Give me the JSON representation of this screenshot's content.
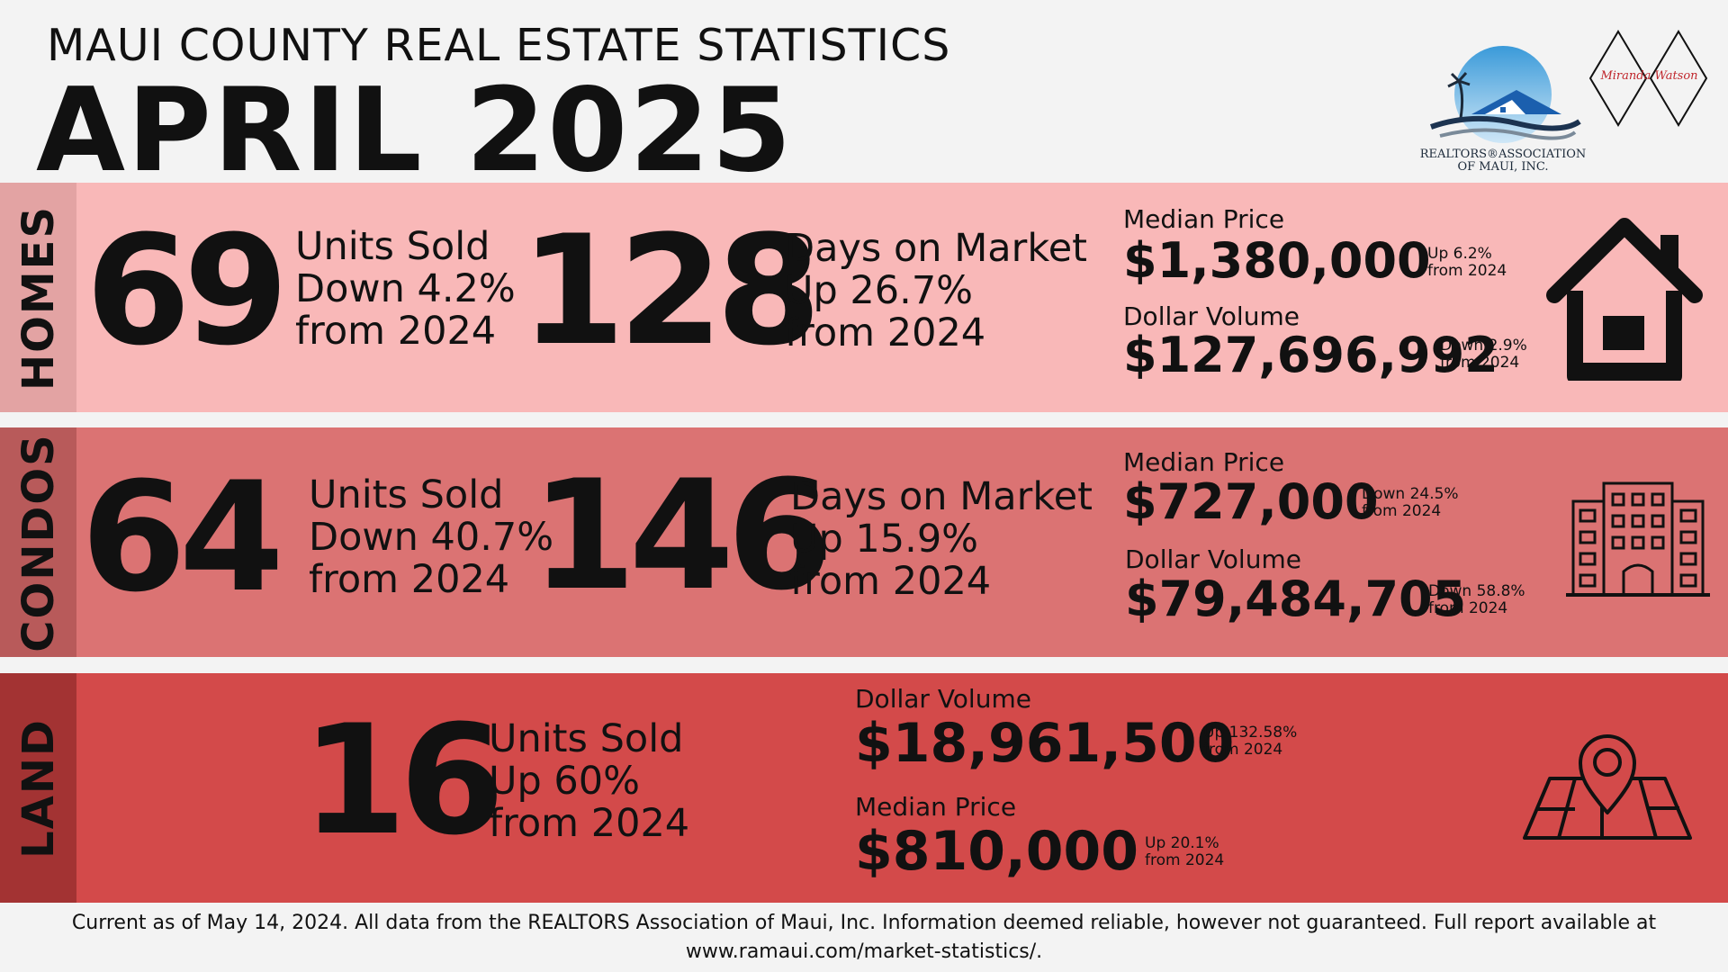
{
  "header": {
    "subtitle": "MAUI COUNTY REAL ESTATE STATISTICS",
    "title": "APRIL 2025",
    "logo_text_line1": "REALTORS®ASSOCIATION",
    "logo_text_line2": "OF MAUI, INC.",
    "signature": "Miranda Watson"
  },
  "homes": {
    "section_label": "HOMES",
    "units_number": "69",
    "units_l1": "Units Sold",
    "units_l2": "Down 4.2%",
    "units_l3": "from 2024",
    "dom_number": "128",
    "dom_l1": "Days on Market",
    "dom_l2": "Up 26.7%",
    "dom_l3": "from 2024",
    "median_label": "Median Price",
    "median_value": "$1,380,000",
    "median_change_l1": "Up 6.2%",
    "median_change_l2": "from 2024",
    "volume_label": "Dollar Volume",
    "volume_value": "$127,696,992",
    "volume_change_l1": "Down 2.9%",
    "volume_change_l2": "from 2024",
    "icon": "house-icon"
  },
  "condos": {
    "section_label": "CONDOS",
    "units_number": "64",
    "units_l1": "Units Sold",
    "units_l2": "Down 40.7%",
    "units_l3": "from 2024",
    "dom_number": "146",
    "dom_l1": "Days on Market",
    "dom_l2": "Up 15.9%",
    "dom_l3": "from 2024",
    "median_label": "Median Price",
    "median_value": "$727,000",
    "median_change_l1": "Down 24.5%",
    "median_change_l2": "from 2024",
    "volume_label": "Dollar Volume",
    "volume_value": "$79,484,705",
    "volume_change_l1": "Down 58.8%",
    "volume_change_l2": "from 2024",
    "icon": "building-icon"
  },
  "land": {
    "section_label": "LAND",
    "units_number": "16",
    "units_l1": "Units Sold",
    "units_l2": "Up 60%",
    "units_l3": "from 2024",
    "volume_label": "Dollar Volume",
    "volume_value": "$18,961,500",
    "volume_change_l1": "Up 132.58%",
    "volume_change_l2": "from 2024",
    "median_label": "Median Price",
    "median_value": "$810,000",
    "median_change_l1": "Up 20.1%",
    "median_change_l2": "from 2024",
    "icon": "map-pin-icon"
  },
  "footer": {
    "line1": "Current as of May 14, 2024. All data from the REALTORS Association of Maui, Inc. Information deemed reliable, however not guaranteed. Full report available at",
    "line2": "www.ramaui.com/market-statistics/."
  }
}
